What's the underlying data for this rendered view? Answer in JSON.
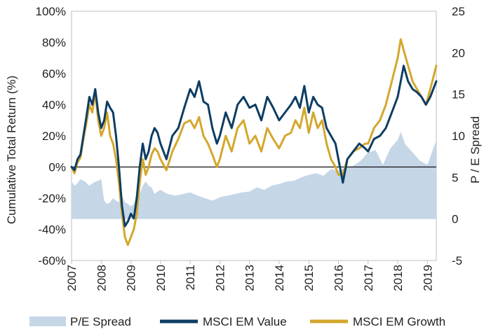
{
  "chart_data": {
    "type": "line",
    "xlabel": "",
    "ylabel_left": "Cumulative Total Return (%)",
    "ylabel_right": "P / E Spread",
    "x_ticks": [
      "2007",
      "2008",
      "2009",
      "2010",
      "2011",
      "2012",
      "2013",
      "2014",
      "2015",
      "2016",
      "2017",
      "2018",
      "2019"
    ],
    "y_left_ticks": [
      "100%",
      "80%",
      "60%",
      "40%",
      "20%",
      "0%",
      "-20%",
      "-40%",
      "-60%"
    ],
    "y_right_ticks": [
      "25",
      "20",
      "15",
      "10",
      "5",
      "0",
      "-5"
    ],
    "ylim_left": [
      -60,
      100
    ],
    "ylim_right": [
      -5,
      25
    ],
    "xlim": [
      2007,
      2019.3
    ],
    "legend_position": "bottom",
    "colors": {
      "pe_spread": "#c5d6e7",
      "value": "#0d3d63",
      "growth": "#d4a72c",
      "zero_line": "#111111",
      "frame": "#bfbfbf"
    },
    "series": [
      {
        "name": "P/E Spread",
        "axis": "right",
        "kind": "area",
        "x": [
          2007.0,
          2007.1,
          2007.2,
          2007.3,
          2007.45,
          2007.6,
          2007.75,
          2007.9,
          2008.0,
          2008.1,
          2008.2,
          2008.3,
          2008.4,
          2008.5,
          2008.6,
          2008.7,
          2008.8,
          2008.9,
          2009.0,
          2009.1,
          2009.2,
          2009.3,
          2009.4,
          2009.5,
          2009.6,
          2009.7,
          2009.8,
          2009.9,
          2010.0,
          2010.25,
          2010.5,
          2010.75,
          2011.0,
          2011.25,
          2011.5,
          2011.75,
          2012.0,
          2012.25,
          2012.5,
          2012.75,
          2013.0,
          2013.25,
          2013.5,
          2013.75,
          2014.0,
          2014.25,
          2014.5,
          2014.75,
          2015.0,
          2015.25,
          2015.5,
          2015.75,
          2016.0,
          2016.25,
          2016.5,
          2016.75,
          2017.0,
          2017.25,
          2017.5,
          2017.75,
          2018.0,
          2018.1,
          2018.25,
          2018.5,
          2018.75,
          2019.0,
          2019.15,
          2019.3
        ],
        "values": [
          4.5,
          4.0,
          4.3,
          4.8,
          4.5,
          4.0,
          4.4,
          4.6,
          4.8,
          2.2,
          1.8,
          2.0,
          2.5,
          2.2,
          2.0,
          2.8,
          2.0,
          1.8,
          1.5,
          1.8,
          3.2,
          3.0,
          4.0,
          4.5,
          4.0,
          3.8,
          3.0,
          3.3,
          3.5,
          3.0,
          2.8,
          3.0,
          3.2,
          2.8,
          2.5,
          2.2,
          2.6,
          2.8,
          3.0,
          3.2,
          3.3,
          3.8,
          3.5,
          4.0,
          4.2,
          4.5,
          4.6,
          5.0,
          5.3,
          5.5,
          5.2,
          6.0,
          5.8,
          6.2,
          6.4,
          7.0,
          8.0,
          8.3,
          6.5,
          8.5,
          9.5,
          10.5,
          9.0,
          8.0,
          7.0,
          6.5,
          8.0,
          9.5
        ]
      },
      {
        "name": "MSCI EM Value",
        "axis": "left",
        "kind": "line",
        "x": [
          2007.0,
          2007.1,
          2007.2,
          2007.3,
          2007.4,
          2007.5,
          2007.6,
          2007.7,
          2007.8,
          2007.9,
          2008.0,
          2008.1,
          2008.2,
          2008.3,
          2008.4,
          2008.5,
          2008.6,
          2008.7,
          2008.8,
          2008.9,
          2009.0,
          2009.1,
          2009.2,
          2009.3,
          2009.4,
          2009.5,
          2009.6,
          2009.7,
          2009.8,
          2009.9,
          2010.0,
          2010.2,
          2010.4,
          2010.6,
          2010.8,
          2011.0,
          2011.15,
          2011.3,
          2011.45,
          2011.6,
          2011.75,
          2011.9,
          2012.0,
          2012.2,
          2012.4,
          2012.6,
          2012.8,
          2013.0,
          2013.2,
          2013.4,
          2013.6,
          2013.8,
          2014.0,
          2014.2,
          2014.4,
          2014.55,
          2014.7,
          2014.85,
          2015.0,
          2015.15,
          2015.3,
          2015.45,
          2015.6,
          2015.75,
          2015.9,
          2016.0,
          2016.15,
          2016.3,
          2016.5,
          2016.7,
          2016.9,
          2017.0,
          2017.2,
          2017.4,
          2017.6,
          2017.8,
          2018.0,
          2018.1,
          2018.2,
          2018.35,
          2018.5,
          2018.65,
          2018.8,
          2018.95,
          2019.1,
          2019.3
        ],
        "values": [
          0,
          -2,
          5,
          8,
          20,
          32,
          45,
          40,
          50,
          35,
          25,
          30,
          42,
          38,
          35,
          20,
          0,
          -25,
          -38,
          -35,
          -30,
          -33,
          -20,
          0,
          15,
          5,
          10,
          20,
          25,
          22,
          15,
          5,
          20,
          25,
          38,
          50,
          45,
          55,
          42,
          40,
          25,
          15,
          20,
          35,
          25,
          40,
          45,
          38,
          40,
          30,
          45,
          38,
          30,
          35,
          40,
          45,
          38,
          52,
          35,
          45,
          40,
          38,
          25,
          20,
          15,
          5,
          -10,
          5,
          10,
          15,
          12,
          10,
          18,
          20,
          25,
          35,
          45,
          55,
          65,
          55,
          50,
          48,
          45,
          40,
          45,
          55
        ]
      },
      {
        "name": "MSCI EM Growth",
        "axis": "left",
        "kind": "line",
        "x": [
          2007.0,
          2007.1,
          2007.2,
          2007.3,
          2007.4,
          2007.5,
          2007.6,
          2007.7,
          2007.8,
          2007.9,
          2008.0,
          2008.1,
          2008.2,
          2008.3,
          2008.4,
          2008.5,
          2008.6,
          2008.7,
          2008.8,
          2008.9,
          2009.0,
          2009.1,
          2009.2,
          2009.3,
          2009.4,
          2009.5,
          2009.6,
          2009.7,
          2009.8,
          2009.9,
          2010.0,
          2010.2,
          2010.4,
          2010.6,
          2010.8,
          2011.0,
          2011.15,
          2011.3,
          2011.45,
          2011.6,
          2011.75,
          2011.9,
          2012.0,
          2012.2,
          2012.4,
          2012.6,
          2012.8,
          2013.0,
          2013.2,
          2013.4,
          2013.6,
          2013.8,
          2014.0,
          2014.2,
          2014.4,
          2014.55,
          2014.7,
          2014.85,
          2015.0,
          2015.15,
          2015.3,
          2015.45,
          2015.6,
          2015.75,
          2015.9,
          2016.0,
          2016.15,
          2016.3,
          2016.5,
          2016.7,
          2016.9,
          2017.0,
          2017.2,
          2017.4,
          2017.6,
          2017.8,
          2018.0,
          2018.1,
          2018.2,
          2018.35,
          2018.5,
          2018.65,
          2018.8,
          2018.95,
          2019.1,
          2019.3
        ],
        "values": [
          0,
          -4,
          3,
          6,
          18,
          28,
          40,
          35,
          48,
          30,
          20,
          25,
          35,
          20,
          15,
          5,
          -10,
          -30,
          -45,
          -50,
          -45,
          -40,
          -30,
          -10,
          5,
          -5,
          0,
          8,
          12,
          10,
          5,
          -2,
          10,
          18,
          28,
          30,
          25,
          32,
          20,
          15,
          8,
          0,
          5,
          20,
          10,
          25,
          30,
          15,
          20,
          10,
          25,
          18,
          12,
          20,
          22,
          30,
          25,
          38,
          22,
          35,
          25,
          30,
          15,
          5,
          0,
          -5,
          -5,
          5,
          10,
          12,
          15,
          15,
          25,
          30,
          40,
          55,
          70,
          82,
          75,
          65,
          55,
          50,
          45,
          40,
          50,
          65
        ]
      }
    ]
  }
}
